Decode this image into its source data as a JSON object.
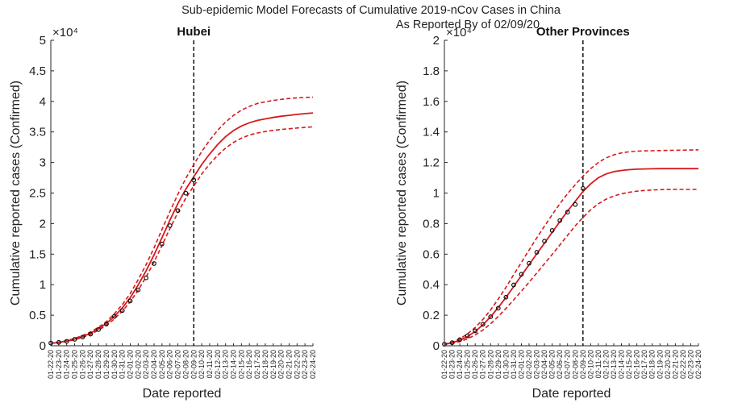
{
  "suptitle_line1": "Sub-epidemic Model Forecasts of Cumulative 2019-nCov Cases in China",
  "suptitle_line2": "As Reported By of 02/09/20",
  "dates": [
    "01-22-20",
    "01-23-20",
    "01-24-20",
    "01-25-20",
    "01-26-20",
    "01-27-20",
    "01-28-20",
    "01-29-20",
    "01-30-20",
    "01-31-20",
    "02-01-20",
    "02-02-20",
    "02-03-20",
    "02-04-20",
    "02-05-20",
    "02-06-20",
    "02-07-20",
    "02-08-20",
    "02-09-20",
    "02-10-20",
    "02-11-20",
    "02-12-20",
    "02-13-20",
    "02-14-20",
    "02-15-20",
    "02-16-20",
    "02-17-20",
    "02-18-20",
    "02-19-20",
    "02-20-20",
    "02-21-20",
    "02-22-20",
    "02-23-20",
    "02-24-20"
  ],
  "chart_data": [
    {
      "type": "line",
      "title": "Hubei",
      "xlabel": "Date reported",
      "ylabel": "Cumulative reported cases (Confirmed)",
      "y_multiplier": "×10⁴",
      "ylim": [
        0,
        5
      ],
      "yticks": [
        0,
        0.5,
        1,
        1.5,
        2,
        2.5,
        3,
        3.5,
        4,
        4.5,
        5
      ],
      "forecast_start": "02-09-20",
      "colors": {
        "model": "#d7191c",
        "data": "#111111"
      },
      "observed": [
        0.044,
        0.055,
        0.073,
        0.106,
        0.142,
        0.191,
        0.266,
        0.356,
        0.481,
        0.576,
        0.734,
        0.914,
        1.112,
        1.346,
        1.667,
        1.966,
        2.212,
        2.497,
        2.714
      ],
      "fit": [
        0.04,
        0.055,
        0.078,
        0.11,
        0.151,
        0.205,
        0.277,
        0.365,
        0.481,
        0.619,
        0.788,
        0.995,
        1.227,
        1.488,
        1.772,
        2.057,
        2.328,
        2.564,
        2.766,
        2.967,
        3.14,
        3.293,
        3.422,
        3.522,
        3.598,
        3.65,
        3.688,
        3.714,
        3.737,
        3.757,
        3.772,
        3.787,
        3.8,
        3.812
      ],
      "upper": [
        0.04,
        0.058,
        0.084,
        0.12,
        0.167,
        0.226,
        0.303,
        0.394,
        0.525,
        0.673,
        0.855,
        1.083,
        1.328,
        1.603,
        1.906,
        2.198,
        2.482,
        2.742,
        2.967,
        3.18,
        3.365,
        3.526,
        3.661,
        3.771,
        3.858,
        3.918,
        3.966,
        3.994,
        4.016,
        4.033,
        4.048,
        4.058,
        4.065,
        4.07
      ],
      "lower": [
        0.04,
        0.053,
        0.072,
        0.099,
        0.137,
        0.185,
        0.254,
        0.335,
        0.439,
        0.566,
        0.721,
        0.91,
        1.127,
        1.372,
        1.643,
        1.919,
        2.184,
        2.418,
        2.616,
        2.81,
        2.976,
        3.116,
        3.236,
        3.328,
        3.398,
        3.45,
        3.483,
        3.507,
        3.526,
        3.541,
        3.552,
        3.564,
        3.574,
        3.584
      ]
    },
    {
      "type": "line",
      "title": "Other Provinces",
      "xlabel": "Date reported",
      "ylabel": "Cumulative reported cases (Confirmed)",
      "y_multiplier": "×10⁴",
      "ylim": [
        0,
        2
      ],
      "yticks": [
        0,
        0.2,
        0.4,
        0.6,
        0.8,
        1,
        1.2,
        1.4,
        1.6,
        1.8,
        2
      ],
      "forecast_start": "02-09-20",
      "colors": {
        "model": "#d7191c",
        "data": "#111111"
      },
      "observed": [
        0.01,
        0.02,
        0.04,
        0.065,
        0.098,
        0.141,
        0.19,
        0.246,
        0.318,
        0.398,
        0.468,
        0.54,
        0.612,
        0.685,
        0.755,
        0.82,
        0.875,
        0.925,
        1.03
      ],
      "fit": [
        0.01,
        0.02,
        0.036,
        0.06,
        0.094,
        0.137,
        0.19,
        0.251,
        0.317,
        0.388,
        0.46,
        0.531,
        0.602,
        0.672,
        0.742,
        0.813,
        0.882,
        0.946,
        1.01,
        1.06,
        1.1,
        1.125,
        1.14,
        1.148,
        1.153,
        1.156,
        1.158,
        1.159,
        1.16,
        1.16,
        1.16,
        1.16,
        1.16,
        1.16
      ],
      "upper": [
        0.01,
        0.023,
        0.045,
        0.078,
        0.12,
        0.172,
        0.235,
        0.306,
        0.383,
        0.465,
        0.546,
        0.627,
        0.706,
        0.783,
        0.858,
        0.93,
        0.996,
        1.055,
        1.11,
        1.16,
        1.2,
        1.23,
        1.25,
        1.263,
        1.27,
        1.274,
        1.276,
        1.277,
        1.278,
        1.279,
        1.28,
        1.281,
        1.282,
        1.283
      ],
      "lower": [
        0.01,
        0.016,
        0.028,
        0.045,
        0.071,
        0.103,
        0.144,
        0.192,
        0.245,
        0.3,
        0.358,
        0.416,
        0.476,
        0.537,
        0.598,
        0.66,
        0.723,
        0.786,
        0.84,
        0.89,
        0.93,
        0.96,
        0.98,
        0.995,
        1.005,
        1.012,
        1.017,
        1.02,
        1.022,
        1.023,
        1.024,
        1.024,
        1.024,
        1.024
      ]
    }
  ]
}
